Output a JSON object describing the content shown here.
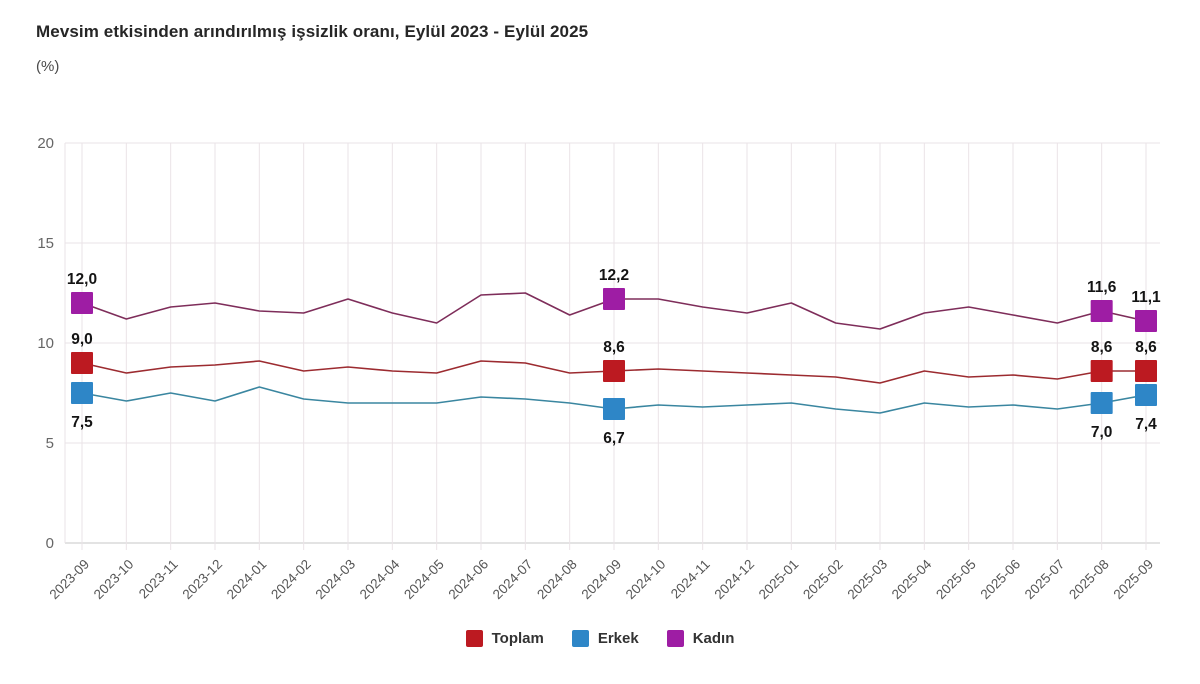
{
  "page": {
    "title": "Mevsim etkisinden arındırılmış işsizlik oranı, Eylül 2023 - Eylül 2025",
    "unit_label": "(%)"
  },
  "chart_data": {
    "type": "line",
    "title": "Mevsim etkisinden arındırılmış işsizlik oranı, Eylül 2023 - Eylül 2025",
    "ylabel": "(%)",
    "xlabel": "",
    "grid": true,
    "legend_position": "bottom",
    "ylim": [
      0,
      20
    ],
    "yticks": [
      0,
      5,
      10,
      15,
      20
    ],
    "decimal_separator": ",",
    "categories": [
      "2023-09",
      "2023-10",
      "2023-11",
      "2023-12",
      "2024-01",
      "2024-02",
      "2024-03",
      "2024-04",
      "2024-05",
      "2024-06",
      "2024-07",
      "2024-08",
      "2024-09",
      "2024-10",
      "2024-11",
      "2024-12",
      "2025-01",
      "2025-02",
      "2025-03",
      "2025-04",
      "2025-05",
      "2025-06",
      "2025-07",
      "2025-08",
      "2025-09"
    ],
    "highlight_indices": [
      0,
      12,
      23,
      24
    ],
    "highlighted_labels": {
      "Toplam": [
        "9,0",
        "8,6",
        "8,6",
        "8,6"
      ],
      "Erkek": [
        "7,5",
        "6,7",
        "7,0",
        "7,4"
      ],
      "Kadın": [
        "12,0",
        "12,2",
        "11,6",
        "11,1"
      ]
    },
    "series": [
      {
        "name": "Toplam",
        "color": "#bc1a21",
        "line_color": "#9c2b30",
        "label_position": "above",
        "values": [
          9.0,
          8.5,
          8.8,
          8.9,
          9.1,
          8.6,
          8.8,
          8.6,
          8.5,
          9.1,
          9.0,
          8.5,
          8.6,
          8.7,
          8.6,
          8.5,
          8.4,
          8.3,
          8.0,
          8.6,
          8.3,
          8.4,
          8.2,
          8.6,
          8.6
        ]
      },
      {
        "name": "Erkek",
        "color": "#2e86c7",
        "line_color": "#3a86a0",
        "label_position": "below",
        "values": [
          7.5,
          7.1,
          7.5,
          7.1,
          7.8,
          7.2,
          7.0,
          7.0,
          7.0,
          7.3,
          7.2,
          7.0,
          6.7,
          6.9,
          6.8,
          6.9,
          7.0,
          6.7,
          6.5,
          7.0,
          6.8,
          6.9,
          6.7,
          7.0,
          7.4
        ]
      },
      {
        "name": "Kadın",
        "color": "#9e1da4",
        "line_color": "#7e2d5a",
        "label_position": "above",
        "values": [
          12.0,
          11.2,
          11.8,
          12.0,
          11.6,
          11.5,
          12.2,
          11.5,
          11.0,
          12.4,
          12.5,
          11.4,
          12.2,
          12.2,
          11.8,
          11.5,
          12.0,
          11.0,
          10.7,
          11.5,
          11.8,
          11.4,
          11.0,
          11.6,
          11.1
        ]
      }
    ],
    "colors": {
      "grid": "#eae3e7",
      "axis": "#c7c7c7",
      "y_tick_text": "#666666",
      "x_tick_text": "#555555",
      "value_label": "#141414"
    }
  }
}
